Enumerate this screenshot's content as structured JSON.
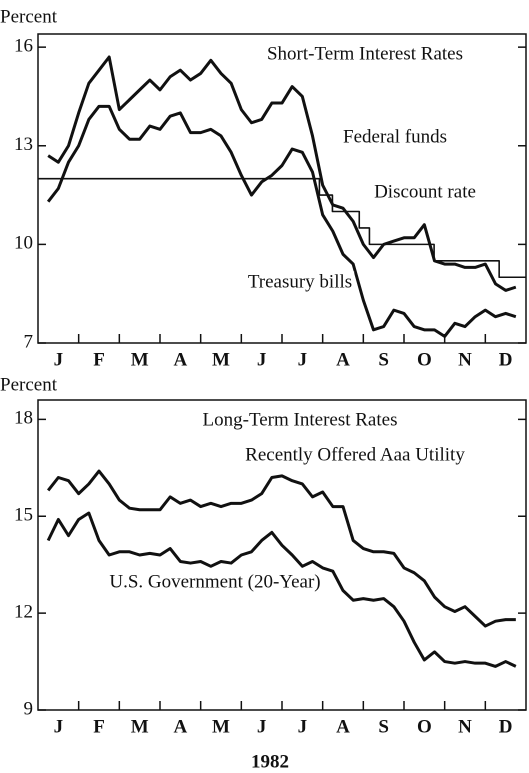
{
  "chart_data": [
    {
      "type": "line",
      "title": "Short-Term Interest Rates",
      "ylabel": "Percent",
      "xlim": [
        0,
        12
      ],
      "xticks": [
        {
          "value": 0.5,
          "label": "J"
        },
        {
          "value": 1.5,
          "label": "F"
        },
        {
          "value": 2.5,
          "label": "M"
        },
        {
          "value": 3.5,
          "label": "A"
        },
        {
          "value": 4.5,
          "label": "M"
        },
        {
          "value": 5.5,
          "label": "J"
        },
        {
          "value": 6.5,
          "label": "J"
        },
        {
          "value": 7.5,
          "label": "A"
        },
        {
          "value": 8.5,
          "label": "S"
        },
        {
          "value": 9.5,
          "label": "O"
        },
        {
          "value": 10.5,
          "label": "N"
        },
        {
          "value": 11.5,
          "label": "D"
        }
      ],
      "ylim": [
        7,
        16.4
      ],
      "yticks": [
        7,
        10,
        13,
        16
      ],
      "x": [
        0.25,
        0.5,
        0.75,
        1,
        1.25,
        1.5,
        1.75,
        2,
        2.25,
        2.5,
        2.75,
        3,
        3.25,
        3.5,
        3.75,
        4,
        4.25,
        4.5,
        4.75,
        5,
        5.25,
        5.5,
        5.75,
        6,
        6.25,
        6.5,
        6.75,
        7,
        7.25,
        7.5,
        7.75,
        8,
        8.25,
        8.5,
        8.75,
        9,
        9.25,
        9.5,
        9.75,
        10,
        10.25,
        10.5,
        10.75,
        11,
        11.25,
        11.5,
        11.75
      ],
      "series": [
        {
          "name": "Federal funds",
          "color": "#111111",
          "values": [
            12.7,
            12.5,
            13.0,
            14.0,
            14.9,
            15.3,
            15.7,
            14.1,
            14.4,
            14.7,
            15.0,
            14.7,
            15.1,
            15.3,
            15.0,
            15.2,
            15.6,
            15.2,
            14.9,
            14.1,
            13.7,
            13.8,
            14.3,
            14.3,
            14.8,
            14.5,
            13.3,
            11.8,
            11.2,
            11.1,
            10.7,
            10.0,
            9.6,
            10.0,
            10.1,
            10.2,
            10.2,
            10.6,
            9.5,
            9.4,
            9.4,
            9.3,
            9.3,
            9.4,
            8.8,
            8.6,
            8.7
          ]
        },
        {
          "name": "Discount rate",
          "color": "#111111",
          "drawstyle": "steps-post",
          "x": [
            0,
            6.92,
            7.24,
            7.9,
            8.15,
            9.74,
            11.34,
            12
          ],
          "values": [
            12,
            11.5,
            11,
            10.5,
            10,
            9.5,
            9,
            9
          ]
        },
        {
          "name": "Treasury bills",
          "color": "#111111",
          "values": [
            11.3,
            11.7,
            12.5,
            13.0,
            13.8,
            14.2,
            14.2,
            13.5,
            13.2,
            13.2,
            13.6,
            13.5,
            13.9,
            14.0,
            13.4,
            13.4,
            13.5,
            13.3,
            12.8,
            12.1,
            11.5,
            11.9,
            12.1,
            12.4,
            12.9,
            12.8,
            12.2,
            10.9,
            10.4,
            9.7,
            9.4,
            8.3,
            7.4,
            7.5,
            8.0,
            7.9,
            7.5,
            7.4,
            7.4,
            7.2,
            7.6,
            7.5,
            7.8,
            8.0,
            7.8,
            7.9,
            7.8
          ]
        }
      ]
    },
    {
      "type": "line",
      "title": "Long-Term Interest Rates",
      "ylabel": "Percent",
      "xlabel": "1982",
      "xlim": [
        0,
        12
      ],
      "xticks": [
        {
          "value": 0.5,
          "label": "J"
        },
        {
          "value": 1.5,
          "label": "F"
        },
        {
          "value": 2.5,
          "label": "M"
        },
        {
          "value": 3.5,
          "label": "A"
        },
        {
          "value": 4.5,
          "label": "M"
        },
        {
          "value": 5.5,
          "label": "J"
        },
        {
          "value": 6.5,
          "label": "J"
        },
        {
          "value": 7.5,
          "label": "A"
        },
        {
          "value": 8.5,
          "label": "S"
        },
        {
          "value": 9.5,
          "label": "O"
        },
        {
          "value": 10.5,
          "label": "N"
        },
        {
          "value": 11.5,
          "label": "D"
        }
      ],
      "ylim": [
        9,
        18.6
      ],
      "yticks": [
        9,
        12,
        15,
        18
      ],
      "x": [
        0.25,
        0.5,
        0.75,
        1,
        1.25,
        1.5,
        1.75,
        2,
        2.25,
        2.5,
        2.75,
        3,
        3.25,
        3.5,
        3.75,
        4,
        4.25,
        4.5,
        4.75,
        5,
        5.25,
        5.5,
        5.75,
        6,
        6.25,
        6.5,
        6.75,
        7,
        7.25,
        7.5,
        7.75,
        8,
        8.25,
        8.5,
        8.75,
        9,
        9.25,
        9.5,
        9.75,
        10,
        10.25,
        10.5,
        10.75,
        11,
        11.25,
        11.5,
        11.75
      ],
      "series": [
        {
          "name": "Recently Offered Aaa Utility",
          "color": "#111111",
          "values": [
            15.8,
            16.2,
            16.1,
            15.7,
            16.0,
            16.4,
            16.0,
            15.5,
            15.25,
            15.2,
            15.2,
            15.2,
            15.6,
            15.4,
            15.5,
            15.3,
            15.4,
            15.3,
            15.4,
            15.4,
            15.5,
            15.7,
            16.2,
            16.25,
            16.1,
            16.0,
            15.6,
            15.75,
            15.3,
            15.3,
            14.25,
            14.0,
            13.9,
            13.9,
            13.85,
            13.4,
            13.25,
            13.0,
            12.5,
            12.2,
            12.05,
            12.2,
            11.9,
            11.6,
            11.75,
            11.8,
            11.8
          ]
        },
        {
          "name": "U.S. Government (20-Year)",
          "color": "#111111",
          "values": [
            14.25,
            14.9,
            14.4,
            14.9,
            15.1,
            14.25,
            13.8,
            13.9,
            13.9,
            13.8,
            13.85,
            13.8,
            14.0,
            13.6,
            13.55,
            13.6,
            13.45,
            13.6,
            13.55,
            13.8,
            13.9,
            14.25,
            14.5,
            14.1,
            13.8,
            13.45,
            13.6,
            13.4,
            13.3,
            12.7,
            12.4,
            12.45,
            12.4,
            12.45,
            12.2,
            11.75,
            11.1,
            10.55,
            10.8,
            10.5,
            10.45,
            10.5,
            10.45,
            10.45,
            10.35,
            10.5,
            10.35
          ]
        }
      ]
    }
  ]
}
